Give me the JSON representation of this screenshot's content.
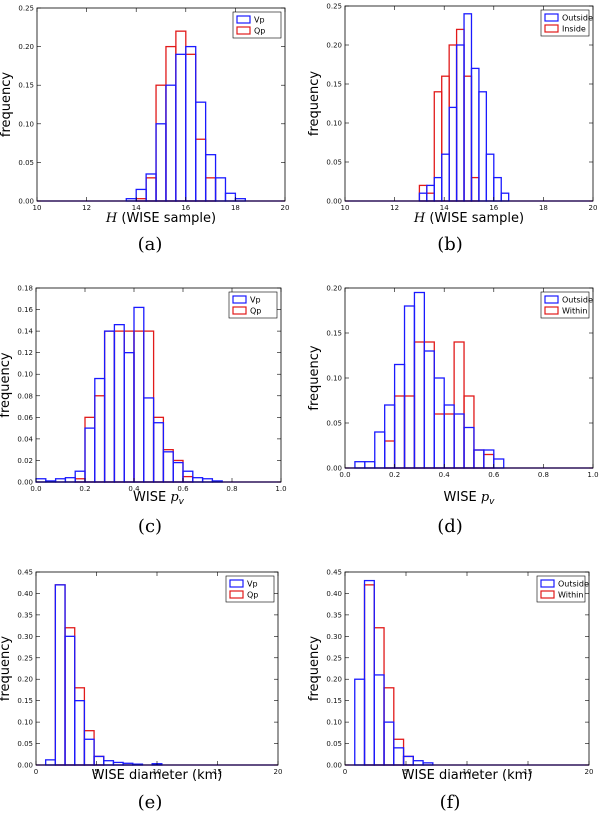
{
  "colors": {
    "blue": "#1a1aff",
    "red": "#e11a1a",
    "overlap": "#6a0f6a"
  },
  "chart_data": [
    {
      "id": "a",
      "type": "bar",
      "caption": "(a)",
      "xlabel_prefix": "H",
      "xlabel_suffix": " (WISE sample)",
      "ylabel": "frequency",
      "xlim": [
        10,
        20
      ],
      "ylim": [
        0,
        0.25
      ],
      "xticks": [
        "10",
        "12",
        "14",
        "16",
        "18",
        "20"
      ],
      "xtick_values": [
        10,
        12,
        14,
        16,
        18,
        20
      ],
      "yticks": [
        "0.00",
        "0.05",
        "0.10",
        "0.15",
        "0.20",
        "0.25"
      ],
      "ytick_values": [
        0,
        0.05,
        0.1,
        0.15,
        0.2,
        0.25
      ],
      "bin_start": 10,
      "bin_width": 0.4,
      "legend_position": "top-right",
      "series": [
        {
          "name": "Vp",
          "color": "blue",
          "values": [
            0,
            0,
            0,
            0,
            0,
            0,
            0,
            0,
            0,
            0.003,
            0.015,
            0.035,
            0.1,
            0.15,
            0.19,
            0.2,
            0.128,
            0.06,
            0.03,
            0.01,
            0.003,
            0,
            0,
            0,
            0
          ]
        },
        {
          "name": "Qp",
          "color": "red",
          "values": [
            0,
            0,
            0,
            0,
            0,
            0,
            0,
            0,
            0,
            0,
            0.003,
            0.03,
            0.15,
            0.2,
            0.22,
            0.19,
            0.08,
            0.03,
            0,
            0,
            0,
            0,
            0,
            0,
            0
          ]
        }
      ]
    },
    {
      "id": "b",
      "type": "bar",
      "caption": "(b)",
      "xlabel_prefix": "H",
      "xlabel_suffix": " (WISE sample)",
      "ylabel": "frequency",
      "xlim": [
        10,
        20
      ],
      "ylim": [
        0,
        0.25
      ],
      "xticks": [
        "10",
        "12",
        "14",
        "16",
        "18",
        "20"
      ],
      "xtick_values": [
        10,
        12,
        14,
        16,
        18,
        20
      ],
      "yticks": [
        "0.00",
        "0.05",
        "0.10",
        "0.15",
        "0.20",
        "0.25"
      ],
      "ytick_values": [
        0,
        0.05,
        0.1,
        0.15,
        0.2,
        0.25
      ],
      "bin_start": 13.0,
      "bin_width": 0.3,
      "legend_position": "top-right",
      "series": [
        {
          "name": "Outside",
          "color": "blue",
          "values": [
            0.01,
            0.02,
            0.03,
            0.06,
            0.12,
            0.2,
            0.24,
            0.17,
            0.14,
            0.06,
            0.03,
            0.01
          ]
        },
        {
          "name": "Inside",
          "color": "red",
          "values": [
            0.02,
            0.01,
            0.14,
            0.16,
            0.2,
            0.22,
            0.16,
            0.03,
            0,
            0,
            0,
            0
          ]
        }
      ]
    },
    {
      "id": "c",
      "type": "bar",
      "caption": "(c)",
      "xlabel_prefix": "WISE ",
      "xlabel_suffix": "p",
      "xlabel_sub": "v",
      "ylabel": "frequency",
      "xlim": [
        0,
        1
      ],
      "ylim": [
        0,
        0.18
      ],
      "xticks": [
        "0.0",
        "0.2",
        "0.4",
        "0.6",
        "0.8",
        "1.0"
      ],
      "xtick_values": [
        0,
        0.2,
        0.4,
        0.6,
        0.8,
        1.0
      ],
      "yticks": [
        "0.00",
        "0.02",
        "0.04",
        "0.06",
        "0.08",
        "0.10",
        "0.12",
        "0.14",
        "0.16",
        "0.18"
      ],
      "ytick_values": [
        0,
        0.02,
        0.04,
        0.06,
        0.08,
        0.1,
        0.12,
        0.14,
        0.16,
        0.18
      ],
      "bin_start": 0.0,
      "bin_width": 0.04,
      "legend_position": "top-right",
      "series": [
        {
          "name": "Vp",
          "color": "blue",
          "values": [
            0.003,
            0.001,
            0.003,
            0.004,
            0.01,
            0.05,
            0.096,
            0.14,
            0.146,
            0.12,
            0.162,
            0.078,
            0.055,
            0.028,
            0.018,
            0.01,
            0.004,
            0.003,
            0.001,
            0,
            0,
            0,
            0,
            0,
            0
          ]
        },
        {
          "name": "Qp",
          "color": "red",
          "values": [
            0,
            0,
            0,
            0,
            0.003,
            0.06,
            0.08,
            0.14,
            0.14,
            0.14,
            0.14,
            0.14,
            0.06,
            0.03,
            0.02,
            0.005,
            0,
            0,
            0,
            0,
            0,
            0,
            0,
            0,
            0
          ]
        }
      ]
    },
    {
      "id": "d",
      "type": "bar",
      "caption": "(d)",
      "xlabel_prefix": "WISE ",
      "xlabel_suffix": "p",
      "xlabel_sub": "v",
      "ylabel": "frequency",
      "xlim": [
        0,
        1
      ],
      "ylim": [
        0,
        0.2
      ],
      "xticks": [
        "0.0",
        "0.2",
        "0.4",
        "0.6",
        "0.8",
        "1.0"
      ],
      "xtick_values": [
        0,
        0.2,
        0.4,
        0.6,
        0.8,
        1.0
      ],
      "yticks": [
        "0.00",
        "0.05",
        "0.10",
        "0.15",
        "0.20"
      ],
      "ytick_values": [
        0,
        0.05,
        0.1,
        0.15,
        0.2
      ],
      "bin_start": 0.04,
      "bin_width": 0.04,
      "legend_position": "top-right",
      "series": [
        {
          "name": "Outside",
          "color": "blue",
          "values": [
            0.007,
            0.007,
            0.04,
            0.07,
            0.115,
            0.18,
            0.195,
            0.13,
            0.1,
            0.07,
            0.06,
            0.045,
            0.02,
            0.02,
            0.01
          ]
        },
        {
          "name": "Within",
          "color": "red",
          "values": [
            0,
            0,
            0,
            0.03,
            0.08,
            0.08,
            0.14,
            0.14,
            0.06,
            0.06,
            0.14,
            0.08,
            0.02,
            0.015,
            0
          ]
        }
      ]
    },
    {
      "id": "e",
      "type": "bar",
      "caption": "(e)",
      "xlabel_prefix": "WISE diameter (km)",
      "xlabel_suffix": "",
      "ylabel": "frequency",
      "xlim": [
        0,
        20
      ],
      "ylim": [
        0,
        0.45
      ],
      "xticks": [
        "0",
        "5",
        "10",
        "15",
        "20"
      ],
      "xtick_values": [
        0,
        5,
        10,
        15,
        20
      ],
      "yticks": [
        "0.00",
        "0.05",
        "0.10",
        "0.15",
        "0.20",
        "0.25",
        "0.30",
        "0.35",
        "0.40",
        "0.45"
      ],
      "ytick_values": [
        0,
        0.05,
        0.1,
        0.15,
        0.2,
        0.25,
        0.3,
        0.35,
        0.4,
        0.45
      ],
      "bin_start": 0.0,
      "bin_width": 0.8,
      "legend_position": "top-right",
      "series": [
        {
          "name": "Vp",
          "color": "blue",
          "values": [
            0,
            0.012,
            0.42,
            0.3,
            0.15,
            0.06,
            0.02,
            0.01,
            0.006,
            0.004,
            0.002,
            0,
            0.003,
            0,
            0,
            0,
            0,
            0,
            0,
            0,
            0,
            0,
            0,
            0,
            0
          ]
        },
        {
          "name": "Qp",
          "color": "red",
          "values": [
            0,
            0,
            0.42,
            0.32,
            0.18,
            0.08,
            0.02,
            0,
            0,
            0,
            0,
            0,
            0,
            0,
            0,
            0,
            0,
            0,
            0,
            0,
            0,
            0,
            0,
            0,
            0
          ]
        }
      ]
    },
    {
      "id": "f",
      "type": "bar",
      "caption": "(f)",
      "xlabel_prefix": "WISE diameter (km)",
      "xlabel_suffix": "",
      "ylabel": "frequency",
      "xlim": [
        0,
        20
      ],
      "ylim": [
        0,
        0.45
      ],
      "xticks": [
        "0",
        "5",
        "10",
        "15",
        "20"
      ],
      "xtick_values": [
        0,
        5,
        10,
        15,
        20
      ],
      "yticks": [
        "0.00",
        "0.05",
        "0.10",
        "0.15",
        "0.20",
        "0.25",
        "0.30",
        "0.35",
        "0.40",
        "0.45"
      ],
      "ytick_values": [
        0,
        0.05,
        0.1,
        0.15,
        0.2,
        0.25,
        0.3,
        0.35,
        0.4,
        0.45
      ],
      "bin_start": 0.0,
      "bin_width": 0.8,
      "legend_position": "top-right",
      "series": [
        {
          "name": "Outside",
          "color": "blue",
          "values": [
            0,
            0.2,
            0.43,
            0.21,
            0.1,
            0.04,
            0.02,
            0.01,
            0.005,
            0,
            0,
            0,
            0,
            0,
            0,
            0,
            0,
            0,
            0,
            0,
            0,
            0,
            0,
            0,
            0
          ]
        },
        {
          "name": "Within",
          "color": "red",
          "values": [
            0,
            0,
            0.42,
            0.32,
            0.18,
            0.06,
            0.02,
            0,
            0,
            0,
            0,
            0,
            0,
            0,
            0,
            0,
            0,
            0,
            0,
            0,
            0,
            0,
            0,
            0,
            0
          ]
        }
      ]
    }
  ]
}
